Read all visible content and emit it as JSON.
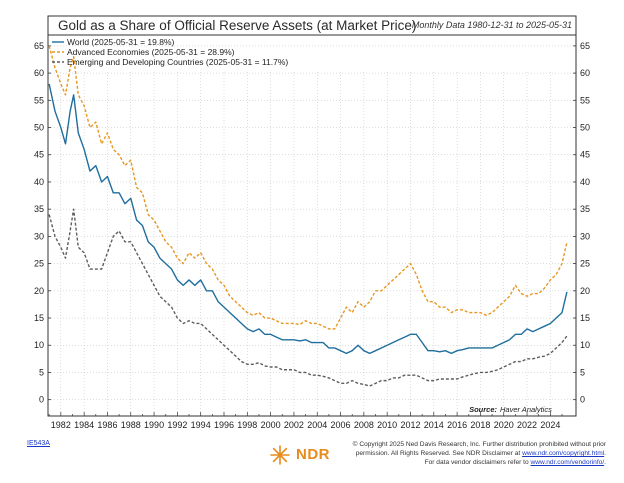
{
  "chart_data": {
    "type": "line",
    "title": "Gold as a Share of Official Reserve Assets (at Market Price)",
    "subtitle": "Monthly Data 1980-12-31 to 2025-05-31",
    "xlabel": "",
    "ylabel": "",
    "xlim": [
      1980.9,
      2026.2
    ],
    "ylim": [
      -3,
      67
    ],
    "x_ticks": [
      "1982",
      "1984",
      "1986",
      "1988",
      "1990",
      "1992",
      "1994",
      "1996",
      "1998",
      "2000",
      "2002",
      "2004",
      "2006",
      "2008",
      "2010",
      "2012",
      "2014",
      "2016",
      "2018",
      "2020",
      "2022",
      "2024"
    ],
    "y_ticks": [
      0,
      5,
      10,
      15,
      20,
      25,
      30,
      35,
      40,
      45,
      50,
      55,
      60,
      65
    ],
    "grid": true,
    "legend_position": "top-left",
    "series": [
      {
        "name": "World (2025-05-31 = 19.8%)",
        "color": "#1f6e9e",
        "style": "solid",
        "x": [
          1981.0,
          1981.5,
          1982.0,
          1982.4,
          1982.8,
          1983.1,
          1983.5,
          1984.0,
          1984.5,
          1985.0,
          1985.5,
          1986.0,
          1986.5,
          1987.0,
          1987.5,
          1988.0,
          1988.5,
          1989.0,
          1989.5,
          1990.0,
          1990.5,
          1991.0,
          1991.5,
          1992.0,
          1992.5,
          1993.0,
          1993.5,
          1994.0,
          1994.5,
          1995.0,
          1995.5,
          1996.0,
          1996.5,
          1997.0,
          1997.5,
          1998.0,
          1998.5,
          1999.0,
          1999.5,
          2000.0,
          2000.5,
          2001.0,
          2001.5,
          2002.0,
          2002.5,
          2003.0,
          2003.5,
          2004.0,
          2004.5,
          2005.0,
          2005.5,
          2006.0,
          2006.5,
          2007.0,
          2007.5,
          2008.0,
          2008.5,
          2009.0,
          2009.5,
          2010.0,
          2010.5,
          2011.0,
          2011.5,
          2012.0,
          2012.5,
          2013.0,
          2013.5,
          2014.0,
          2014.5,
          2015.0,
          2015.5,
          2016.0,
          2016.5,
          2017.0,
          2017.5,
          2018.0,
          2018.5,
          2019.0,
          2019.5,
          2020.0,
          2020.5,
          2021.0,
          2021.5,
          2022.0,
          2022.5,
          2023.0,
          2023.5,
          2024.0,
          2024.5,
          2025.0,
          2025.42
        ],
        "y": [
          58,
          53,
          50,
          47,
          53,
          56,
          49,
          46,
          42,
          43,
          40,
          41,
          38,
          38,
          36,
          37,
          33,
          32,
          29,
          28,
          26,
          25,
          24,
          22,
          21,
          22,
          21,
          22,
          20,
          20,
          18,
          17,
          16,
          15,
          14,
          13,
          12.5,
          13,
          12,
          12,
          11.5,
          11,
          11,
          11,
          10.8,
          11,
          10.5,
          10.5,
          10.5,
          9.5,
          9.5,
          9,
          8.5,
          9,
          10,
          9,
          8.5,
          9,
          9.5,
          10,
          10.5,
          11,
          11.5,
          12,
          12,
          10.5,
          9,
          9,
          8.8,
          9,
          8.5,
          9,
          9.2,
          9.5,
          9.5,
          9.5,
          9.5,
          9.5,
          10,
          10.5,
          11,
          12,
          12,
          13,
          12.5,
          13,
          13.5,
          14,
          15,
          16,
          19.8
        ]
      },
      {
        "name": "Advanced Economies (2025-05-31 = 28.9%)",
        "color": "#e8961f",
        "style": "dashed",
        "x": [
          1981.0,
          1981.5,
          1982.0,
          1982.4,
          1982.8,
          1983.1,
          1983.5,
          1984.0,
          1984.5,
          1985.0,
          1985.5,
          1986.0,
          1986.5,
          1987.0,
          1987.5,
          1988.0,
          1988.5,
          1989.0,
          1989.5,
          1990.0,
          1990.5,
          1991.0,
          1991.5,
          1992.0,
          1992.5,
          1993.0,
          1993.5,
          1994.0,
          1994.5,
          1995.0,
          1995.5,
          1996.0,
          1996.5,
          1997.0,
          1997.5,
          1998.0,
          1998.5,
          1999.0,
          1999.5,
          2000.0,
          2000.5,
          2001.0,
          2001.5,
          2002.0,
          2002.5,
          2003.0,
          2003.5,
          2004.0,
          2004.5,
          2005.0,
          2005.5,
          2006.0,
          2006.5,
          2007.0,
          2007.5,
          2008.0,
          2008.5,
          2009.0,
          2009.5,
          2010.0,
          2010.5,
          2011.0,
          2011.5,
          2012.0,
          2012.5,
          2013.0,
          2013.5,
          2014.0,
          2014.5,
          2015.0,
          2015.5,
          2016.0,
          2016.5,
          2017.0,
          2017.5,
          2018.0,
          2018.5,
          2019.0,
          2019.5,
          2020.0,
          2020.5,
          2021.0,
          2021.5,
          2022.0,
          2022.5,
          2023.0,
          2023.5,
          2024.0,
          2024.5,
          2025.0,
          2025.42
        ],
        "y": [
          65,
          61,
          58,
          56,
          61,
          63,
          56,
          54,
          50,
          51,
          47,
          49,
          46,
          45,
          43,
          44,
          39,
          38,
          34,
          33,
          31,
          29,
          28,
          26,
          25,
          27,
          26,
          27,
          25,
          24,
          22,
          21,
          19,
          18,
          17,
          16,
          15.5,
          16,
          15,
          15,
          14.5,
          14,
          14,
          14,
          13.8,
          14.5,
          14,
          14,
          13.5,
          13,
          13,
          15,
          17,
          16,
          18,
          17,
          18,
          20,
          20,
          21,
          22,
          23,
          24,
          25,
          23,
          20,
          18,
          18,
          17,
          17,
          16,
          16.5,
          16.5,
          16,
          16,
          16,
          15.5,
          16,
          17,
          18,
          19,
          21,
          19.5,
          19,
          19.5,
          19.5,
          20.5,
          22,
          23,
          25,
          28.9
        ]
      },
      {
        "name": "Emerging and Developing Countries (2025-05-31 = 11.7%)",
        "color": "#5e5e5e",
        "style": "dashed",
        "x": [
          1981.0,
          1981.5,
          1982.0,
          1982.4,
          1982.8,
          1983.1,
          1983.5,
          1984.0,
          1984.5,
          1985.0,
          1985.5,
          1986.0,
          1986.5,
          1987.0,
          1987.5,
          1988.0,
          1988.5,
          1989.0,
          1989.5,
          1990.0,
          1990.5,
          1991.0,
          1991.5,
          1992.0,
          1992.5,
          1993.0,
          1993.5,
          1994.0,
          1994.5,
          1995.0,
          1995.5,
          1996.0,
          1996.5,
          1997.0,
          1997.5,
          1998.0,
          1998.5,
          1999.0,
          1999.5,
          2000.0,
          2000.5,
          2001.0,
          2001.5,
          2002.0,
          2002.5,
          2003.0,
          2003.5,
          2004.0,
          2004.5,
          2005.0,
          2005.5,
          2006.0,
          2006.5,
          2007.0,
          2007.5,
          2008.0,
          2008.5,
          2009.0,
          2009.5,
          2010.0,
          2010.5,
          2011.0,
          2011.5,
          2012.0,
          2012.5,
          2013.0,
          2013.5,
          2014.0,
          2014.5,
          2015.0,
          2015.5,
          2016.0,
          2016.5,
          2017.0,
          2017.5,
          2018.0,
          2018.5,
          2019.0,
          2019.5,
          2020.0,
          2020.5,
          2021.0,
          2021.5,
          2022.0,
          2022.5,
          2023.0,
          2023.5,
          2024.0,
          2024.5,
          2025.0,
          2025.42
        ],
        "y": [
          34,
          30,
          28,
          26,
          31,
          35,
          28,
          27,
          24,
          24,
          24,
          27,
          30,
          31,
          29,
          29,
          27,
          25,
          23,
          21,
          19,
          18,
          17,
          15,
          14,
          14.5,
          14,
          14,
          13,
          12,
          11,
          10,
          9,
          8,
          7,
          6.5,
          6.5,
          6.8,
          6.2,
          6.0,
          6.0,
          5.5,
          5.5,
          5.5,
          5.0,
          5.0,
          4.5,
          4.5,
          4.3,
          4.0,
          3.5,
          3.0,
          3.0,
          3.5,
          3.0,
          2.8,
          2.5,
          3.0,
          3.5,
          3.5,
          4.0,
          4.0,
          4.5,
          4.5,
          4.5,
          4.0,
          3.5,
          3.5,
          3.8,
          3.8,
          3.8,
          3.8,
          4.2,
          4.5,
          4.8,
          5.0,
          5.0,
          5.2,
          5.5,
          6.0,
          6.5,
          7.0,
          7.0,
          7.5,
          7.5,
          7.8,
          8.0,
          8.5,
          9.5,
          10.5,
          11.7
        ]
      }
    ],
    "annotations": {
      "source_label": "Source:",
      "source_value": "Haver Analytics"
    }
  },
  "footer": {
    "chart_id": "IE543A",
    "logo_text": "NDR",
    "copyright_line1": "© Copyright 2025 Ned Davis Research, Inc. Further distribution prohibited without prior",
    "copyright_line2a": "permission. All Rights Reserved. See NDR Disclaimer at ",
    "copyright_link1": "www.ndr.com/copyright.html",
    "copyright_line2b": ".",
    "copyright_line3a": "For data vendor disclaimers refer to ",
    "copyright_link2": "www.ndr.com/vendorinfo/",
    "copyright_line3b": "."
  },
  "colors": {
    "frame": "#333333",
    "grid": "#bcbcbc",
    "link": "#1a37c4",
    "logo": "#e78b1c"
  }
}
